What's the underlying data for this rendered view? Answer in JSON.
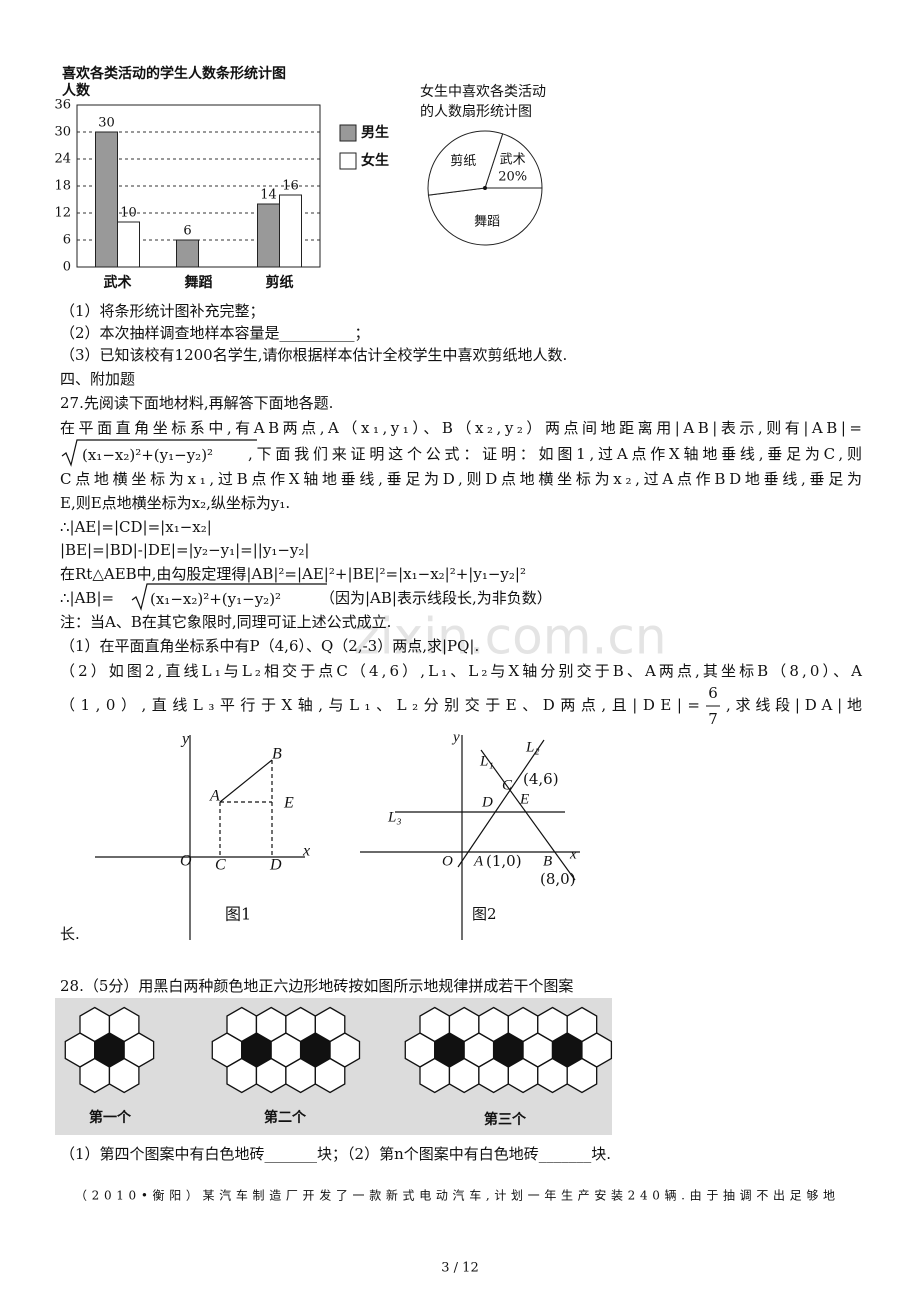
{
  "chart_data": [
    {
      "type": "bar",
      "title": "喜欢各类活动的学生人数条形统计图",
      "y_label": "人数",
      "categories": [
        "武术",
        "舞蹈",
        "剪纸"
      ],
      "series": [
        {
          "name": "男生",
          "color": "#999999",
          "values": [
            30,
            6,
            14
          ]
        },
        {
          "name": "女生",
          "color": "#ffffff",
          "values": [
            10,
            null,
            16
          ]
        }
      ],
      "ylim": [
        0,
        36
      ],
      "yticks": [
        0,
        6,
        12,
        18,
        24,
        30,
        36
      ],
      "grid": true,
      "legend": "right"
    },
    {
      "type": "pie",
      "title": [
        "女生中喜欢各类活动",
        "的人数扇形统计图"
      ],
      "categories": [
        "武术",
        "舞蹈",
        "剪纸"
      ],
      "values": [
        20,
        48,
        32
      ],
      "value_labels": [
        "20%",
        null,
        null
      ],
      "color": "#ffffff"
    }
  ],
  "lines": [
    "（1）将条形统计图补充完整；",
    "（2）本次抽样调查地样本容量是__________；",
    "（3）已知该校有1200名学生,请你根据样本估计全校学生中喜欢剪纸地人数.",
    "四、附加题",
    "27.先阅读下面地材料,再解答下面地各题.",
    "在平面直角坐标系中,有AB两点,A（x₁,y₁）、B（x₂,y₂）两点间地距离用|AB|表示,则有|AB|=",
    "(x₁−x₂)²+(y₁−y₂)²",
    ",下面我们来证明这个公式：证明：如图1,过A点作X轴地垂线,垂足为C,则",
    "C点地横坐标为x₁,过B点作X轴地垂线,垂足为D,则D点地横坐标为x₂,过A点作BD地垂线,垂足为",
    "E,则E点地横坐标为x₂,纵坐标为y₁.",
    "∴|AE|=|CD|=|x₁−x₂|",
    "|BE|=|BD|-|DE|=|y₂−y₁|=||y₁−y₂|",
    "在Rt△AEB中,由勾股定理得|AB|²=|AE|²+|BE|²=|x₁−x₂|²+|y₁−y₂|²",
    "∴|AB|=",
    "(x₁−x₂)²+(y₁−y₂)²",
    "（因为|AB|表示线段长,为非负数）",
    "注：当A、B在其它象限时,同理可证上述公式成立.",
    "（1）在平面直角坐标系中有P（4,6）、Q（2,-3）两点,求|PQ|.",
    "（2）如图2,直线L₁与L₂相交于点C（4,6）,L₁、L₂与X轴分别交于B、A两点,其坐标B（8,0）、A",
    "（1,0）,直线L₃平行于X轴,与L₁、L₂分别交于E、D两点,且|DE|=",
    ",求线段|DA|地",
    "长.",
    "28.（5分）用黑白两种颜色地正六边形地砖按如图所示地规律拼成若干个图案",
    "（1）第四个图案中有白色地砖_______块；（2）第n个图案中有白色地砖_______块.",
    "（2010•衡阳）某汽车制造厂开发了一款新式电动汽车,计划一年生产安装240辆.由于抽调不出足够地",
    "3 / 12"
  ],
  "fraction": {
    "numerator": "6",
    "denominator": "7"
  },
  "figure1": [
    "y",
    "x",
    "O",
    "A",
    "B",
    "E",
    "C",
    "D",
    "图1"
  ],
  "figure2": [
    "y",
    "x",
    "O",
    "L₁",
    "L₂",
    "L₃",
    "C",
    "(4,6)",
    "D",
    "E",
    "A",
    "(1,0)",
    "B",
    "(8,0)",
    "图2"
  ],
  "hexagons": [
    "第一个",
    "第二个",
    "第三个"
  ],
  "watermark": "zixin.com.cn"
}
